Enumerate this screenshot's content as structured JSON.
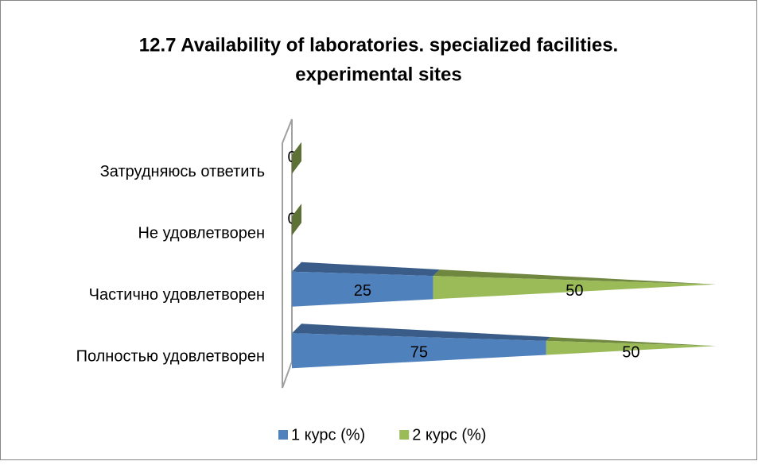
{
  "chart_data": {
    "type": "bar",
    "orientation": "horizontal",
    "stack_mode": "percent",
    "style": "3d-pyramid",
    "title": [
      "12.7 Availability of laboratories. specialized facilities.",
      "experimental sites"
    ],
    "categories": [
      "Полностью удовлетворен",
      "Частично удовлетворен",
      "Не удовлетворен",
      "Затрудняюсь ответить"
    ],
    "series": [
      {
        "name": "1 курс (%)",
        "color": "#4f81bd",
        "values": [
          75,
          25,
          0,
          0
        ]
      },
      {
        "name": "2 курс (%)",
        "color": "#9bbb59",
        "values": [
          50,
          50,
          0,
          0
        ]
      }
    ],
    "legend": "bottom",
    "data_labels": true
  }
}
